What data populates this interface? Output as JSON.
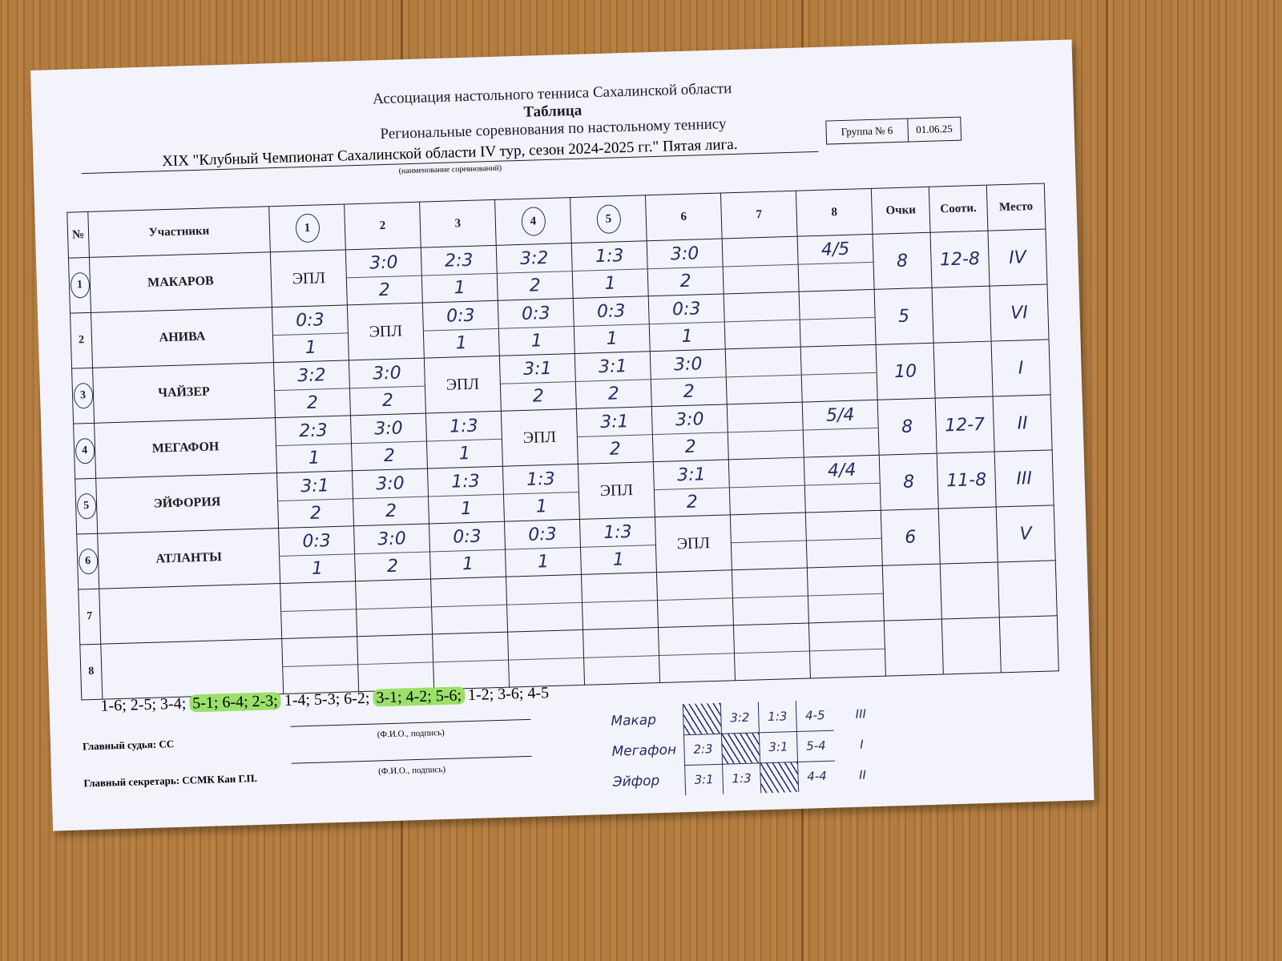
{
  "header": {
    "association": "Ассоциация настольного тенниса Сахалинской области",
    "title": "Таблица",
    "subtitle": "Региональные соревнования по настольному теннису",
    "competition": "XIX  \"Клубный Чемпионат Сахалинской области IV тур, сезон 2024-2025 гг.\" Пятая лига.",
    "caption": "(наименование соревнований)",
    "group": "Группа № 6",
    "date": "01.06.25"
  },
  "table": {
    "columns": [
      "№",
      "Участники",
      "1",
      "2",
      "3",
      "4",
      "5",
      "6",
      "7",
      "8",
      "Очки",
      "Сооти.",
      "Место"
    ],
    "columns_circled": [
      false,
      false,
      true,
      false,
      false,
      true,
      true,
      false,
      false,
      false,
      false,
      false,
      false
    ],
    "rows": [
      {
        "number": "1",
        "circled": true,
        "name": "МАКАРОВ",
        "cells": [
          "ЭПЛ",
          {
            "score": "3:0",
            "points": "2"
          },
          {
            "score": "2:3",
            "points": "1"
          },
          {
            "score": "3:2",
            "points": "2"
          },
          {
            "score": "1:3",
            "points": "1"
          },
          {
            "score": "3:0",
            "points": "2"
          },
          null,
          {
            "score": "4/5"
          }
        ],
        "points": 8,
        "ratio": "12-8",
        "place": "IV"
      },
      {
        "number": "2",
        "circled": false,
        "name": "АНИВА",
        "cells": [
          {
            "score": "0:3",
            "points": "1"
          },
          "ЭПЛ",
          {
            "score": "0:3",
            "points": "1"
          },
          {
            "score": "0:3",
            "points": "1"
          },
          {
            "score": "0:3",
            "points": "1"
          },
          {
            "score": "0:3",
            "points": "1"
          },
          null,
          null
        ],
        "points": 5,
        "ratio": null,
        "place": "VI"
      },
      {
        "number": "3",
        "circled": true,
        "name": "ЧАЙЗЕР",
        "cells": [
          {
            "score": "3:2",
            "points": "2"
          },
          {
            "score": "3:0",
            "points": "2"
          },
          "ЭПЛ",
          {
            "score": "3:1",
            "points": "2"
          },
          {
            "score": "3:1",
            "points": "2"
          },
          {
            "score": "3:0",
            "points": "2"
          },
          null,
          null
        ],
        "points": 10,
        "ratio": null,
        "place": "I"
      },
      {
        "number": "4",
        "circled": true,
        "name": "МЕГАФОН",
        "cells": [
          {
            "score": "2:3",
            "points": "1"
          },
          {
            "score": "3:0",
            "points": "2"
          },
          {
            "score": "1:3",
            "points": "1"
          },
          "ЭПЛ",
          {
            "score": "3:1",
            "points": "2"
          },
          {
            "score": "3:0",
            "points": "2"
          },
          null,
          {
            "score": "5/4"
          }
        ],
        "points": 8,
        "ratio": "12-7",
        "place": "II"
      },
      {
        "number": "5",
        "circled": true,
        "name": "ЭЙФОРИЯ",
        "cells": [
          {
            "score": "3:1",
            "points": "2"
          },
          {
            "score": "3:0",
            "points": "2"
          },
          {
            "score": "1:3",
            "points": "1"
          },
          {
            "score": "1:3",
            "points": "1"
          },
          "ЭПЛ",
          {
            "score": "3:1",
            "points": "2"
          },
          null,
          {
            "score": "4/4"
          }
        ],
        "points": 8,
        "ratio": "11-8",
        "place": "III"
      },
      {
        "number": "6",
        "circled": true,
        "name": "АТЛАНТЫ",
        "cells": [
          {
            "score": "0:3",
            "points": "1"
          },
          {
            "score": "3:0",
            "points": "2"
          },
          {
            "score": "0:3",
            "points": "1"
          },
          {
            "score": "0:3",
            "points": "1"
          },
          {
            "score": "1:3",
            "points": "1"
          },
          "ЭПЛ",
          null,
          null
        ],
        "points": 6,
        "ratio": null,
        "place": "V"
      },
      {
        "number": "7",
        "circled": false,
        "name": null,
        "cells": [
          null,
          null,
          null,
          null,
          null,
          null,
          null,
          null
        ],
        "points": null,
        "ratio": null,
        "place": null
      },
      {
        "number": "8",
        "circled": false,
        "name": null,
        "cells": [
          null,
          null,
          null,
          null,
          null,
          null,
          null,
          null
        ],
        "points": null,
        "ratio": null,
        "place": null
      }
    ]
  },
  "schedule": [
    {
      "text": "1-6; 2-5; 3-4;",
      "highlight": false
    },
    {
      "text": "5-1; 6-4; 2-3;",
      "highlight": true
    },
    {
      "text": "1-4; 5-3; 6-2;",
      "highlight": false
    },
    {
      "text": "3-1; 4-2; 5-6;",
      "highlight": true
    },
    {
      "text": "1-2; 3-6; 4-5",
      "highlight": false
    }
  ],
  "footer": {
    "judge": "Главный судья: СС",
    "judge_caption": "(Ф.И.О., подпись)",
    "secretary": "Главный секретарь: ССМК Кан Г.П.",
    "secretary_caption": "(Ф.И.О., подпись)"
  },
  "tiebreak": [
    {
      "name": "Макар",
      "cells": [
        null,
        "3:2",
        "1:3",
        "4-5"
      ],
      "place": "III"
    },
    {
      "name": "Мегафон",
      "cells": [
        "2:3",
        null,
        "3:1",
        "5-4"
      ],
      "place": "I"
    },
    {
      "name": "Эйфор",
      "cells": [
        "3:1",
        "1:3",
        null,
        "4-4"
      ],
      "place": "II"
    }
  ]
}
